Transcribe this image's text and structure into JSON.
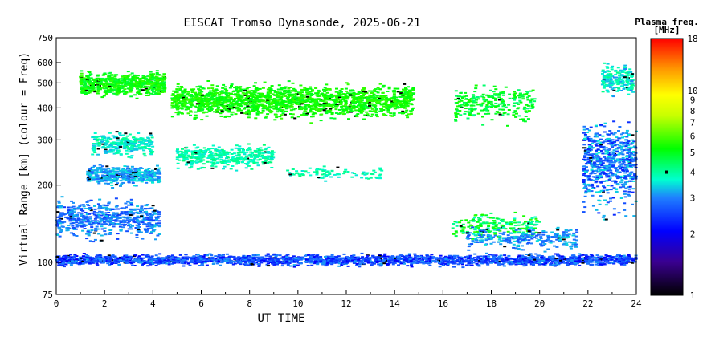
{
  "chart_data": {
    "type": "scatter",
    "title": "EISCAT Tromso Dynasonde, 2025-06-21",
    "xlabel": "UT TIME",
    "ylabel": "Virtual Range [km] (colour = Freq)",
    "xlim": [
      0,
      24
    ],
    "ylim": [
      75,
      750
    ],
    "y_scale": "log",
    "x_ticks": [
      "0",
      "2",
      "4",
      "6",
      "8",
      "10",
      "12",
      "14",
      "16",
      "18",
      "20",
      "22",
      "24"
    ],
    "y_ticks": [
      {
        "value": 75,
        "label": "75"
      },
      {
        "value": 100,
        "label": "100"
      },
      {
        "value": 200,
        "label": "200"
      },
      {
        "value": 300,
        "label": "300"
      },
      {
        "value": 400,
        "label": "400"
      },
      {
        "value": 500,
        "label": "500"
      },
      {
        "value": 600,
        "label": "600"
      },
      {
        "value": 750,
        "label": "750"
      }
    ],
    "colorbar": {
      "title_line1": "Plasma freq.",
      "title_line2": "[MHz]",
      "scale": "log",
      "range": [
        1,
        18
      ],
      "ticks": [
        {
          "value": 1,
          "label": "1"
        },
        {
          "value": 2,
          "label": "2"
        },
        {
          "value": 3,
          "label": "3"
        },
        {
          "value": 4,
          "label": "4"
        },
        {
          "value": 5,
          "label": "5"
        },
        {
          "value": 6,
          "label": "6"
        },
        {
          "value": 7,
          "label": "7"
        },
        {
          "value": 8,
          "label": "8"
        },
        {
          "value": 9,
          "label": "9"
        },
        {
          "value": 10,
          "label": "10"
        },
        {
          "value": 18,
          "label": "18"
        }
      ],
      "marker_value": 4
    },
    "grid": false,
    "series": [
      {
        "x_range": [
          0.0,
          24.0
        ],
        "y_center": 103,
        "y_spread": 7,
        "freq": [
          2.0,
          3.2
        ],
        "density": 2400
      },
      {
        "x_range": [
          0.0,
          4.3
        ],
        "y_center": 150,
        "y_spread": 35,
        "freq": [
          2.4,
          3.4
        ],
        "density": 600
      },
      {
        "x_range": [
          1.3,
          4.3
        ],
        "y_center": 220,
        "y_spread": 25,
        "freq": [
          2.8,
          3.6
        ],
        "density": 450
      },
      {
        "x_range": [
          1.5,
          4.0
        ],
        "y_center": 290,
        "y_spread": 40,
        "freq": [
          3.2,
          4.2
        ],
        "density": 300
      },
      {
        "x_range": [
          1.0,
          4.5
        ],
        "y_center": 500,
        "y_spread": 70,
        "freq": [
          4.6,
          5.8
        ],
        "density": 650
      },
      {
        "x_range": [
          4.8,
          14.8
        ],
        "y_center": 430,
        "y_spread": 85,
        "freq": [
          4.8,
          5.8
        ],
        "density": 1800
      },
      {
        "x_range": [
          5.0,
          9.0
        ],
        "y_center": 260,
        "y_spread": 35,
        "freq": [
          3.5,
          4.3
        ],
        "density": 400
      },
      {
        "x_range": [
          9.5,
          13.5
        ],
        "y_center": 225,
        "y_spread": 18,
        "freq": [
          3.5,
          4.2
        ],
        "density": 90
      },
      {
        "x_range": [
          16.5,
          19.8
        ],
        "y_center": 420,
        "y_spread": 90,
        "freq": [
          4.2,
          5.5
        ],
        "density": 260
      },
      {
        "x_range": [
          16.4,
          20.0
        ],
        "y_center": 140,
        "y_spread": 22,
        "freq": [
          3.6,
          5.8
        ],
        "density": 200
      },
      {
        "x_range": [
          17.0,
          21.6
        ],
        "y_center": 125,
        "y_spread": 15,
        "freq": [
          2.6,
          3.5
        ],
        "density": 260
      },
      {
        "x_range": [
          21.8,
          24.0
        ],
        "y_center": 250,
        "y_spread": 130,
        "freq": [
          2.2,
          3.6
        ],
        "density": 650
      },
      {
        "x_range": [
          22.6,
          23.9
        ],
        "y_center": 520,
        "y_spread": 90,
        "freq": [
          3.0,
          4.2
        ],
        "density": 200
      }
    ]
  }
}
